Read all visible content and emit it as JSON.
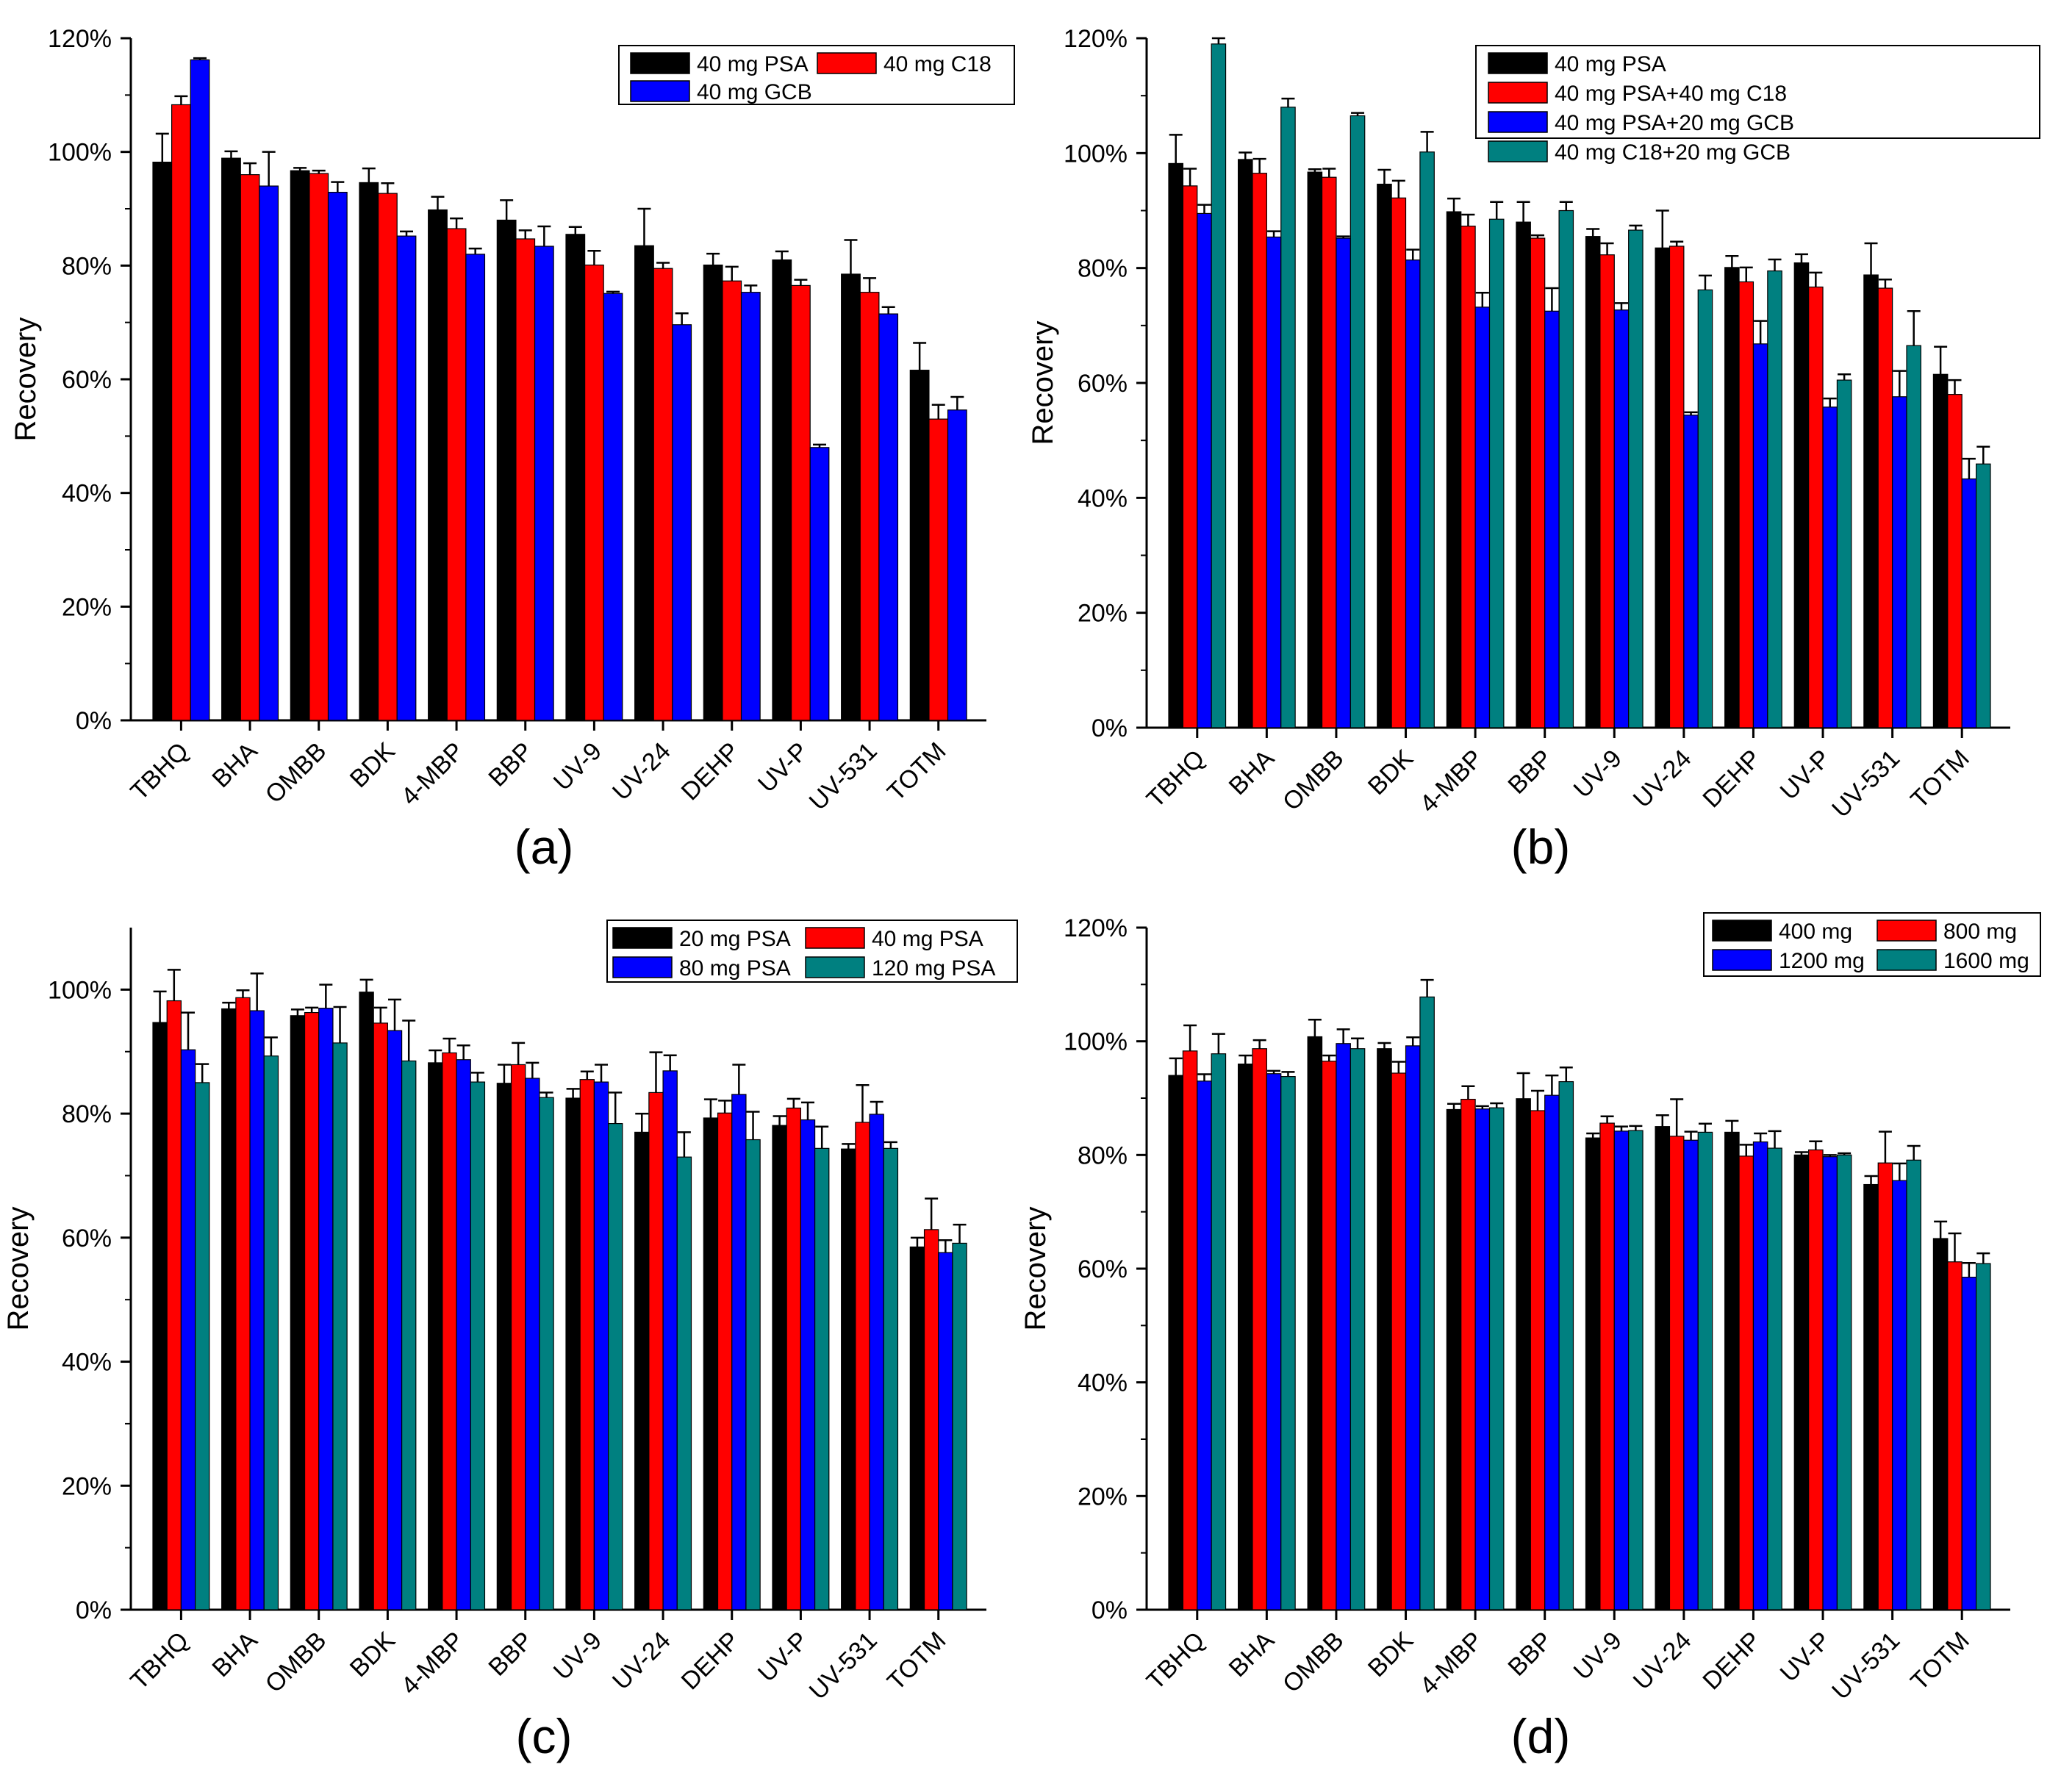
{
  "chart_data": [
    {
      "type": "bar",
      "panel_label": "(a)",
      "ylabel": "Recovery",
      "ylim": [
        0,
        120
      ],
      "yticks": [
        0,
        20,
        40,
        60,
        80,
        100,
        120
      ],
      "ytick_labels": [
        "0%",
        "20%",
        "40%",
        "60%",
        "80%",
        "100%",
        "120%"
      ],
      "categories": [
        "TBHQ",
        "BHA",
        "OMBB",
        "BDK",
        "4-MBP",
        "BBP",
        "UV-9",
        "UV-24",
        "DEHP",
        "UV-P",
        "UV-531",
        "TOTM"
      ],
      "legend_position": "top-right",
      "legend_columns": 2,
      "series": [
        {
          "name": "40 mg PSA",
          "color": "#000000",
          "values": [
            98.2,
            98.9,
            96.7,
            94.6,
            89.8,
            88.0,
            85.5,
            83.5,
            80.1,
            81.0,
            78.5,
            61.6
          ],
          "errors": [
            5.0,
            1.2,
            0.5,
            2.5,
            2.3,
            3.5,
            1.3,
            6.5,
            2.0,
            1.5,
            6.0,
            4.8
          ]
        },
        {
          "name": "40 mg C18",
          "color": "#ff0000",
          "values": [
            108.3,
            96.0,
            96.2,
            92.7,
            86.5,
            84.7,
            80.1,
            79.5,
            77.3,
            76.5,
            75.3,
            53.0
          ],
          "errors": [
            1.5,
            2.0,
            0.5,
            1.8,
            1.8,
            1.5,
            2.5,
            1.0,
            2.5,
            1.0,
            2.5,
            2.5
          ]
        },
        {
          "name": "40 mg GCB",
          "color": "#0000ff",
          "values": [
            116.2,
            94.0,
            92.9,
            85.2,
            82.0,
            83.4,
            75.1,
            69.6,
            75.3,
            48.0,
            71.5,
            54.6
          ],
          "errors": [
            0.3,
            6.0,
            1.8,
            0.8,
            1.0,
            3.5,
            0.3,
            2.0,
            1.2,
            0.5,
            1.2,
            2.3
          ]
        }
      ]
    },
    {
      "type": "bar",
      "panel_label": "(b)",
      "ylabel": "Recovery",
      "ylim": [
        0,
        120
      ],
      "yticks": [
        0,
        20,
        40,
        60,
        80,
        100,
        120
      ],
      "ytick_labels": [
        "0%",
        "20%",
        "40%",
        "60%",
        "80%",
        "100%",
        "120%"
      ],
      "categories": [
        "TBHQ",
        "BHA",
        "OMBB",
        "BDK",
        "4-MBP",
        "BBP",
        "UV-9",
        "UV-24",
        "DEHP",
        "UV-P",
        "UV-531",
        "TOTM"
      ],
      "legend_position": "top-right",
      "legend_columns": 1,
      "series": [
        {
          "name": "40 mg PSA",
          "color": "#000000",
          "values": [
            98.2,
            98.9,
            96.7,
            94.6,
            89.8,
            88.0,
            85.5,
            83.5,
            80.1,
            80.9,
            78.8,
            61.5
          ],
          "errors": [
            5.0,
            1.2,
            0.5,
            2.5,
            2.3,
            3.5,
            1.3,
            6.5,
            2.0,
            1.5,
            5.5,
            4.8
          ]
        },
        {
          "name": "40 mg PSA+40 mg C18",
          "color": "#ff0000",
          "values": [
            94.3,
            96.5,
            95.8,
            92.2,
            87.3,
            85.2,
            82.3,
            83.8,
            77.6,
            76.7,
            76.5,
            58.0
          ],
          "errors": [
            3.0,
            2.5,
            1.5,
            3.0,
            2.0,
            0.5,
            2.0,
            0.8,
            2.5,
            2.5,
            1.5,
            2.5
          ]
        },
        {
          "name": "40 mg PSA+20 mg GCB",
          "color": "#0000ff",
          "values": [
            89.5,
            85.4,
            85.2,
            81.4,
            73.2,
            72.5,
            72.7,
            54.4,
            66.8,
            55.8,
            57.6,
            43.3
          ],
          "errors": [
            1.5,
            1.0,
            0.3,
            1.8,
            2.5,
            4.0,
            1.2,
            0.5,
            4.0,
            1.5,
            4.5,
            3.5
          ]
        },
        {
          "name": "40 mg C18+20 mg GCB",
          "color": "#008080",
          "values": [
            119.0,
            108.0,
            106.5,
            100.2,
            88.5,
            90.0,
            86.6,
            76.2,
            79.5,
            60.5,
            66.5,
            45.9
          ],
          "errors": [
            1.0,
            1.5,
            0.5,
            3.5,
            3.0,
            1.5,
            0.8,
            2.5,
            2.0,
            1.0,
            6.0,
            3.0
          ]
        }
      ]
    },
    {
      "type": "bar",
      "panel_label": "(c)",
      "ylabel": "Recovery",
      "ylim": [
        0,
        110
      ],
      "yticks": [
        0,
        20,
        40,
        60,
        80,
        100
      ],
      "ytick_labels": [
        "0%",
        "20%",
        "40%",
        "60%",
        "80%",
        "100%"
      ],
      "categories": [
        "TBHQ",
        "BHA",
        "OMBB",
        "BDK",
        "4-MBP",
        "BBP",
        "UV-9",
        "UV-24",
        "DEHP",
        "UV-P",
        "UV-531",
        "TOTM"
      ],
      "legend_position": "top-right",
      "legend_columns": 2,
      "series": [
        {
          "name": "20 mg PSA",
          "color": "#000000",
          "values": [
            94.7,
            96.9,
            95.8,
            99.6,
            88.2,
            84.9,
            82.5,
            77.0,
            79.3,
            78.1,
            74.3,
            58.5
          ],
          "errors": [
            5.0,
            1.0,
            1.0,
            2.0,
            2.0,
            3.0,
            1.5,
            3.0,
            3.0,
            1.5,
            0.8,
            1.5
          ]
        },
        {
          "name": "40 mg PSA",
          "color": "#ff0000",
          "values": [
            98.2,
            98.7,
            96.3,
            94.6,
            89.8,
            87.9,
            85.5,
            83.4,
            80.1,
            80.9,
            78.6,
            61.3
          ],
          "errors": [
            5.0,
            1.2,
            0.8,
            2.5,
            2.3,
            3.5,
            1.3,
            6.5,
            2.0,
            1.5,
            6.0,
            5.0
          ]
        },
        {
          "name": "80 mg PSA",
          "color": "#0000ff",
          "values": [
            90.3,
            96.6,
            97.0,
            93.4,
            88.7,
            85.7,
            85.1,
            86.9,
            83.1,
            79.0,
            79.9,
            57.6
          ],
          "errors": [
            6.0,
            6.0,
            3.8,
            5.0,
            2.3,
            2.5,
            2.8,
            2.5,
            4.8,
            2.8,
            2.0,
            2.0
          ]
        },
        {
          "name": "120 mg PSA",
          "color": "#008080",
          "values": [
            85.0,
            89.3,
            91.4,
            88.5,
            85.1,
            82.6,
            78.4,
            73.0,
            75.8,
            74.4,
            74.4,
            59.1
          ],
          "errors": [
            3.0,
            3.0,
            5.8,
            6.5,
            1.5,
            0.8,
            5.0,
            4.0,
            4.5,
            3.5,
            1.0,
            3.0
          ]
        }
      ]
    },
    {
      "type": "bar",
      "panel_label": "(d)",
      "ylabel": "Recovery",
      "ylim": [
        0,
        120
      ],
      "yticks": [
        0,
        20,
        40,
        60,
        80,
        100,
        120
      ],
      "ytick_labels": [
        "0%",
        "20%",
        "40%",
        "60%",
        "80%",
        "100%",
        "120%"
      ],
      "categories": [
        "TBHQ",
        "BHA",
        "OMBB",
        "BDK",
        "4-MBP",
        "BBP",
        "UV-9",
        "UV-24",
        "DEHP",
        "UV-P",
        "UV-531",
        "TOTM"
      ],
      "legend_position": "top-right",
      "legend_columns": 2,
      "series": [
        {
          "name": "400 mg",
          "color": "#000000",
          "values": [
            94.0,
            96.0,
            100.8,
            98.7,
            88.0,
            89.9,
            83.0,
            85.0,
            84.0,
            80.0,
            74.8,
            65.3
          ],
          "errors": [
            3.0,
            1.5,
            3.0,
            1.0,
            1.0,
            4.5,
            0.8,
            2.0,
            2.0,
            0.5,
            1.5,
            3.0
          ]
        },
        {
          "name": "800 mg",
          "color": "#ff0000",
          "values": [
            98.3,
            98.7,
            96.5,
            94.4,
            89.8,
            87.8,
            85.6,
            83.3,
            79.8,
            80.9,
            78.6,
            61.2
          ],
          "errors": [
            4.5,
            1.5,
            1.0,
            2.0,
            2.3,
            3.5,
            1.2,
            6.5,
            2.0,
            1.5,
            5.5,
            5.0
          ]
        },
        {
          "name": "1200 mg",
          "color": "#0000ff",
          "values": [
            93.0,
            94.3,
            99.6,
            99.2,
            88.1,
            90.5,
            84.2,
            82.6,
            82.3,
            79.7,
            75.5,
            58.5
          ],
          "errors": [
            1.2,
            0.5,
            2.5,
            1.5,
            0.5,
            3.5,
            0.8,
            1.5,
            1.5,
            0.3,
            3.0,
            2.5
          ]
        },
        {
          "name": "1600 mg",
          "color": "#008080",
          "values": [
            97.8,
            93.8,
            98.7,
            107.8,
            88.3,
            92.9,
            84.3,
            84.0,
            81.2,
            80.0,
            79.1,
            60.9
          ],
          "errors": [
            3.5,
            0.8,
            1.8,
            3.0,
            0.8,
            2.5,
            0.8,
            1.5,
            3.0,
            0.3,
            2.5,
            1.8
          ]
        }
      ]
    }
  ]
}
